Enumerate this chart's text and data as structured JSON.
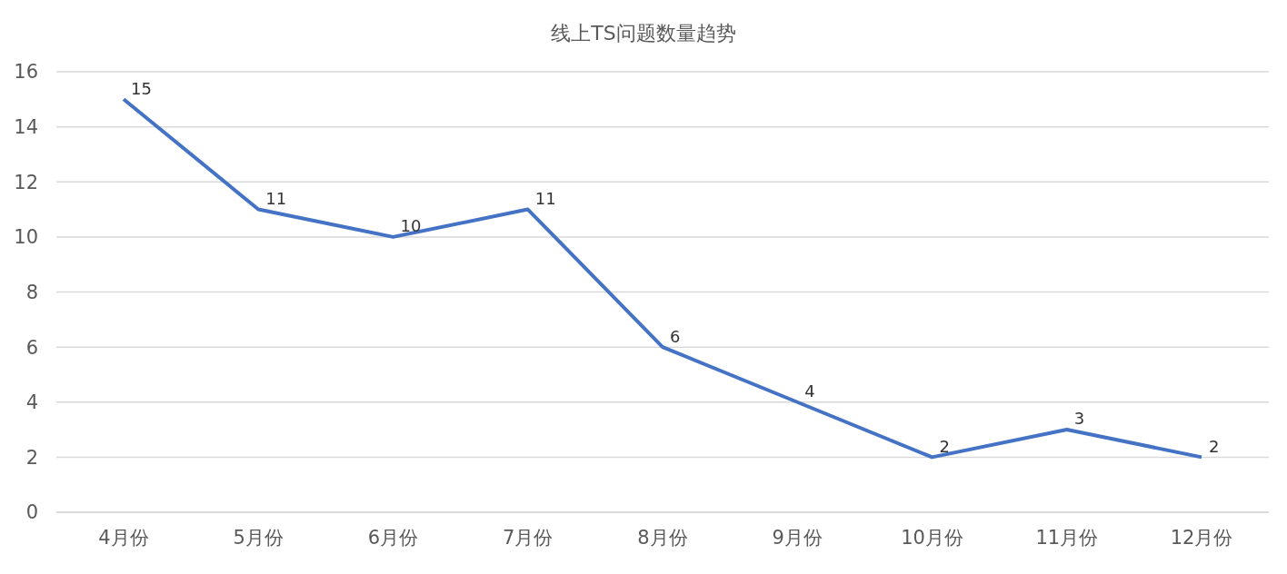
{
  "chart_data": {
    "type": "line",
    "title": "线上TS问题数量趋势",
    "categories": [
      "4月份",
      "5月份",
      "6月份",
      "7月份",
      "8月份",
      "9月份",
      "10月份",
      "11月份",
      "12月份"
    ],
    "series": [
      {
        "color": "#4472c4",
        "values": [
          15,
          11,
          10,
          11,
          6,
          4,
          2,
          3,
          2
        ]
      }
    ],
    "ylim": [
      0,
      16
    ],
    "yticks": [
      0,
      2,
      4,
      6,
      8,
      10,
      12,
      14,
      16
    ],
    "grid": "y",
    "marker": "none",
    "data_labels": true
  }
}
